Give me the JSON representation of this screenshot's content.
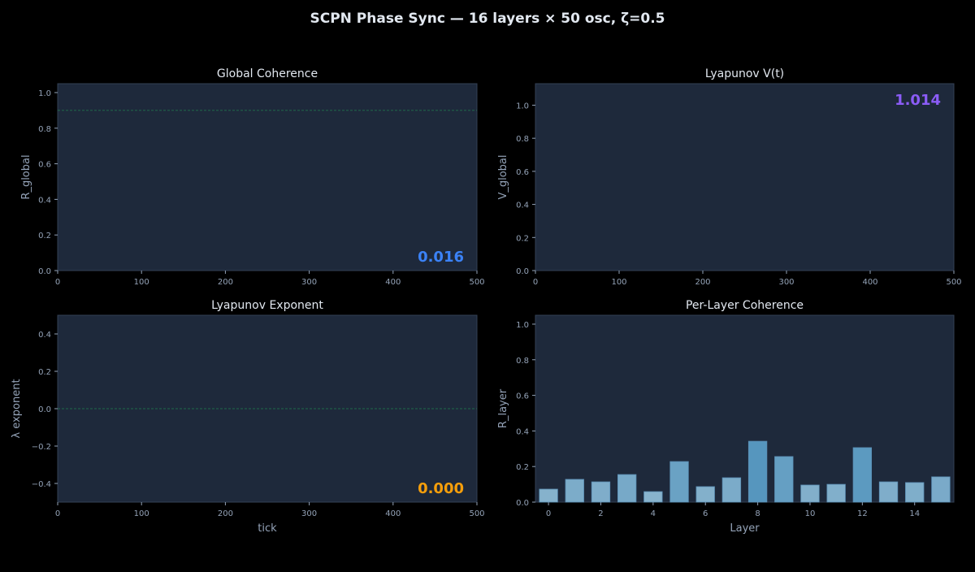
{
  "title": "SCPN Phase Sync — 16 layers × 50 osc, ζ=0.5",
  "colors": {
    "background": "#000000",
    "panel": "#1e293b",
    "spine": "#334155",
    "tick": "#94a3b8",
    "title": "#e2e8f0",
    "coherence_value": "#3b82f6",
    "lyapunov_value": "#8b5cf6",
    "exponent_value": "#f59e0b",
    "reference_line": "#22c55e"
  },
  "chart_data": [
    {
      "type": "line",
      "title": "Global Coherence",
      "xlabel": "",
      "ylabel": "R_global",
      "xlim": [
        0,
        500
      ],
      "ylim": [
        0,
        1.05
      ],
      "xticks": [
        "0",
        "100",
        "200",
        "300",
        "400",
        "500"
      ],
      "yticks": [
        "0.0",
        "0.2",
        "0.4",
        "0.6",
        "0.8",
        "1.0"
      ],
      "reference_line": 0.9,
      "annotation": "0.016",
      "grid": false
    },
    {
      "type": "line",
      "title": "Lyapunov V(t)",
      "xlabel": "",
      "ylabel": "V_global",
      "xlim": [
        0,
        500
      ],
      "ylim": [
        0,
        1.13
      ],
      "xticks": [
        "0",
        "100",
        "200",
        "300",
        "400",
        "500"
      ],
      "yticks": [
        "0.0",
        "0.2",
        "0.4",
        "0.6",
        "0.8",
        "1.0"
      ],
      "annotation": "1.014",
      "grid": false
    },
    {
      "type": "line",
      "title": "Lyapunov Exponent",
      "xlabel": "tick",
      "ylabel": "λ exponent",
      "xlim": [
        0,
        500
      ],
      "ylim": [
        -0.5,
        0.5
      ],
      "xticks": [
        "0",
        "100",
        "200",
        "300",
        "400",
        "500"
      ],
      "yticks": [
        "−0.4",
        "−0.2",
        "0.0",
        "0.2",
        "0.4"
      ],
      "reference_line": 0,
      "annotation": "0.000",
      "grid": false
    },
    {
      "type": "bar",
      "title": "Per-Layer Coherence",
      "xlabel": "Layer",
      "ylabel": "R_layer",
      "xlim": [
        -0.5,
        15.5
      ],
      "ylim": [
        0,
        1.05
      ],
      "xticks": [
        "0",
        "2",
        "4",
        "6",
        "8",
        "10",
        "12",
        "14"
      ],
      "yticks": [
        "0.0",
        "0.2",
        "0.4",
        "0.6",
        "0.8",
        "1.0"
      ],
      "categories": [
        0,
        1,
        2,
        3,
        4,
        5,
        6,
        7,
        8,
        9,
        10,
        11,
        12,
        13,
        14,
        15
      ],
      "values": [
        0.073,
        0.128,
        0.114,
        0.155,
        0.059,
        0.228,
        0.087,
        0.137,
        0.342,
        0.256,
        0.096,
        0.1,
        0.306,
        0.114,
        0.11,
        0.142
      ],
      "grid": false
    }
  ]
}
